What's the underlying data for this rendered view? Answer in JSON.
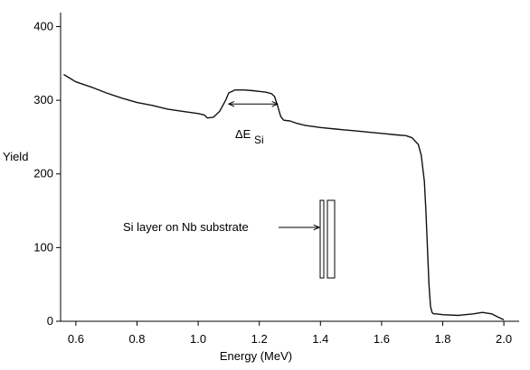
{
  "chart_data": {
    "type": "line",
    "title": "",
    "xlabel": "Energy (MeV)",
    "ylabel": "Yield",
    "xlim": [
      0.55,
      2.05
    ],
    "ylim": [
      0,
      430
    ],
    "x_ticks": [
      0.6,
      0.8,
      1.0,
      1.2,
      1.4,
      1.6,
      1.8,
      2.0
    ],
    "x_tick_labels": [
      "0.6",
      "0.8",
      "1.0",
      "1.2",
      "1.4",
      "1.6",
      "1.8",
      "2.0"
    ],
    "y_ticks": [
      0,
      100,
      200,
      300,
      400
    ],
    "y_tick_labels": [
      "0",
      "100",
      "200",
      "300",
      "400"
    ],
    "grid": false,
    "series": [
      {
        "x": [
          0.56,
          0.58,
          0.6,
          0.65,
          0.7,
          0.75,
          0.8,
          0.85,
          0.9,
          0.95,
          1.0,
          1.02,
          1.03,
          1.05,
          1.07,
          1.09,
          1.1,
          1.12,
          1.15,
          1.18,
          1.2,
          1.22,
          1.24,
          1.25,
          1.26,
          1.27,
          1.28,
          1.3,
          1.32,
          1.35,
          1.4,
          1.45,
          1.5,
          1.55,
          1.6,
          1.65,
          1.68,
          1.7,
          1.72,
          1.73,
          1.74,
          1.745,
          1.75,
          1.755,
          1.76,
          1.765,
          1.77,
          1.78,
          1.8,
          1.85,
          1.9,
          1.93,
          1.96,
          1.98,
          2.0
        ],
        "y": [
          335,
          330,
          325,
          318,
          310,
          303,
          297,
          293,
          288,
          285,
          282,
          280,
          276,
          277,
          285,
          300,
          310,
          314,
          314,
          313,
          312,
          311,
          309,
          305,
          292,
          278,
          273,
          272,
          269,
          266,
          263,
          261,
          259,
          257,
          255,
          253,
          252,
          249,
          240,
          225,
          190,
          150,
          100,
          50,
          20,
          12,
          10,
          10,
          9,
          8,
          10,
          12,
          10,
          6,
          2
        ]
      }
    ],
    "annotations": {
      "delta_label_symbol": "ΔE",
      "delta_label_subscript": "Si",
      "delta_arrow_from_x": 1.1,
      "delta_arrow_to_x": 1.26,
      "delta_arrow_y": 295,
      "layer_label": "Si layer on Nb substrate"
    }
  }
}
